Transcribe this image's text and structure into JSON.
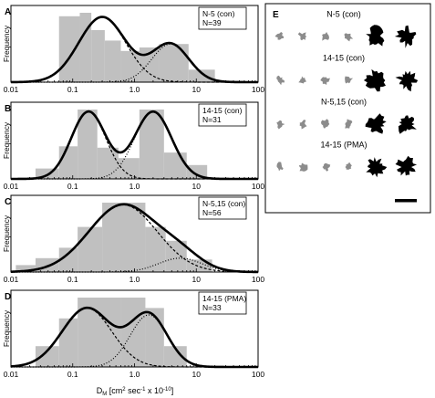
{
  "figure": {
    "xlabel": "D",
    "xlabel_sub": "M",
    "xlabel_rest": " [cm",
    "xlabel_sup1": "2",
    "xlabel_rest2": " sec",
    "xlabel_sup2": "-1",
    "xlabel_rest3": " x 10",
    "xlabel_sup3": "-10",
    "xlabel_rest4": "]"
  },
  "chart_data": [
    {
      "panel": "A",
      "type": "bar",
      "legend": [
        "N-5 (con)",
        "N=39"
      ],
      "ylabel": "Frequency",
      "x_scale": "log",
      "xlim": [
        0.01,
        100
      ],
      "x_ticks": [
        "0.01",
        "0.1",
        "1.0",
        "10",
        "100"
      ],
      "bins": [
        {
          "from": 0.06,
          "to": 0.13,
          "height": 0.95
        },
        {
          "from": 0.13,
          "to": 0.2,
          "height": 1.0
        },
        {
          "from": 0.2,
          "to": 0.33,
          "height": 0.75
        },
        {
          "from": 0.33,
          "to": 0.6,
          "height": 0.6
        },
        {
          "from": 0.6,
          "to": 1.2,
          "height": 0.45
        },
        {
          "from": 1.2,
          "to": 2.5,
          "height": 0.5
        },
        {
          "from": 2.5,
          "to": 7.5,
          "height": 0.55
        },
        {
          "from": 7.5,
          "to": 20,
          "height": 0.18
        }
      ],
      "fits": [
        {
          "style": "dashed",
          "mu": 0.3,
          "sigma": 0.38,
          "amp": 0.94
        },
        {
          "style": "dotted",
          "mu": 3.8,
          "sigma": 0.3,
          "amp": 0.55
        }
      ],
      "total_fit": true
    },
    {
      "panel": "B",
      "type": "bar",
      "legend": [
        "14-15 (con)",
        "N=31"
      ],
      "ylabel": "Frequency",
      "x_scale": "log",
      "xlim": [
        0.01,
        100
      ],
      "x_ticks": [
        "0.01",
        "0.1",
        "1.0",
        "10",
        "100"
      ],
      "bins": [
        {
          "from": 0.025,
          "to": 0.06,
          "height": 0.15
        },
        {
          "from": 0.06,
          "to": 0.12,
          "height": 0.47
        },
        {
          "from": 0.12,
          "to": 0.25,
          "height": 1.0
        },
        {
          "from": 0.25,
          "to": 0.55,
          "height": 0.45
        },
        {
          "from": 0.55,
          "to": 1.2,
          "height": 0.3
        },
        {
          "from": 1.2,
          "to": 3.0,
          "height": 1.0
        },
        {
          "from": 3.0,
          "to": 7.0,
          "height": 0.38
        },
        {
          "from": 7.0,
          "to": 15.0,
          "height": 0.2
        }
      ],
      "fits": [
        {
          "style": "dashed",
          "mu": 0.18,
          "sigma": 0.28,
          "amp": 0.97
        },
        {
          "style": "dotted",
          "mu": 2.0,
          "sigma": 0.3,
          "amp": 0.97
        }
      ],
      "total_fit": true
    },
    {
      "panel": "C",
      "type": "bar",
      "legend": [
        "N-5,15 (con)",
        "N=56"
      ],
      "ylabel": "Frequency",
      "x_scale": "log",
      "xlim": [
        0.01,
        100
      ],
      "x_ticks": [
        "0.01",
        "0.1",
        "1.0",
        "10",
        "100"
      ],
      "bins": [
        {
          "from": 0.012,
          "to": 0.025,
          "height": 0.1
        },
        {
          "from": 0.025,
          "to": 0.06,
          "height": 0.2
        },
        {
          "from": 0.06,
          "to": 0.12,
          "height": 0.35
        },
        {
          "from": 0.12,
          "to": 0.3,
          "height": 0.65
        },
        {
          "from": 0.3,
          "to": 1.5,
          "height": 1.0
        },
        {
          "from": 1.5,
          "to": 3.2,
          "height": 0.65
        },
        {
          "from": 3.2,
          "to": 7.0,
          "height": 0.45
        },
        {
          "from": 7.0,
          "to": 18.0,
          "height": 0.18
        }
      ],
      "fits": [
        {
          "style": "dashed",
          "mu": 0.65,
          "sigma": 0.55,
          "amp": 0.97
        },
        {
          "style": "dotted",
          "mu": 5.5,
          "sigma": 0.35,
          "amp": 0.2
        }
      ],
      "total_fit": true
    },
    {
      "panel": "D",
      "type": "bar",
      "legend": [
        "14-15 (PMA)",
        "N=33"
      ],
      "ylabel": "Frequency",
      "x_scale": "log",
      "xlim": [
        0.01,
        100
      ],
      "x_ticks": [
        "0.01",
        "0.1",
        "1.0",
        "10",
        "100"
      ],
      "bins": [
        {
          "from": 0.025,
          "to": 0.06,
          "height": 0.3
        },
        {
          "from": 0.06,
          "to": 0.12,
          "height": 0.7
        },
        {
          "from": 0.12,
          "to": 0.6,
          "height": 1.0
        },
        {
          "from": 0.6,
          "to": 1.5,
          "height": 1.0
        },
        {
          "from": 1.5,
          "to": 3.0,
          "height": 0.85
        },
        {
          "from": 3.0,
          "to": 7.0,
          "height": 0.3
        }
      ],
      "fits": [
        {
          "style": "dashed",
          "mu": 0.17,
          "sigma": 0.4,
          "amp": 0.85
        },
        {
          "style": "dotted",
          "mu": 1.7,
          "sigma": 0.3,
          "amp": 0.75
        }
      ],
      "total_fit": true
    }
  ],
  "panel_e": {
    "label": "E",
    "rows": [
      {
        "title": "N-5 (con)",
        "gray": 4,
        "black": 2
      },
      {
        "title": "14-15 (con)",
        "gray": 4,
        "black": 2
      },
      {
        "title": "N-5,15 (con)",
        "gray": 4,
        "black": 2
      },
      {
        "title": "14-15 (PMA)",
        "gray": 4,
        "black": 2
      }
    ],
    "colors": {
      "gray": "#8c8c8c",
      "black": "#000000"
    }
  },
  "colors": {
    "bar": "#c0c0c0",
    "fit": "#000000",
    "background": "#ffffff"
  }
}
